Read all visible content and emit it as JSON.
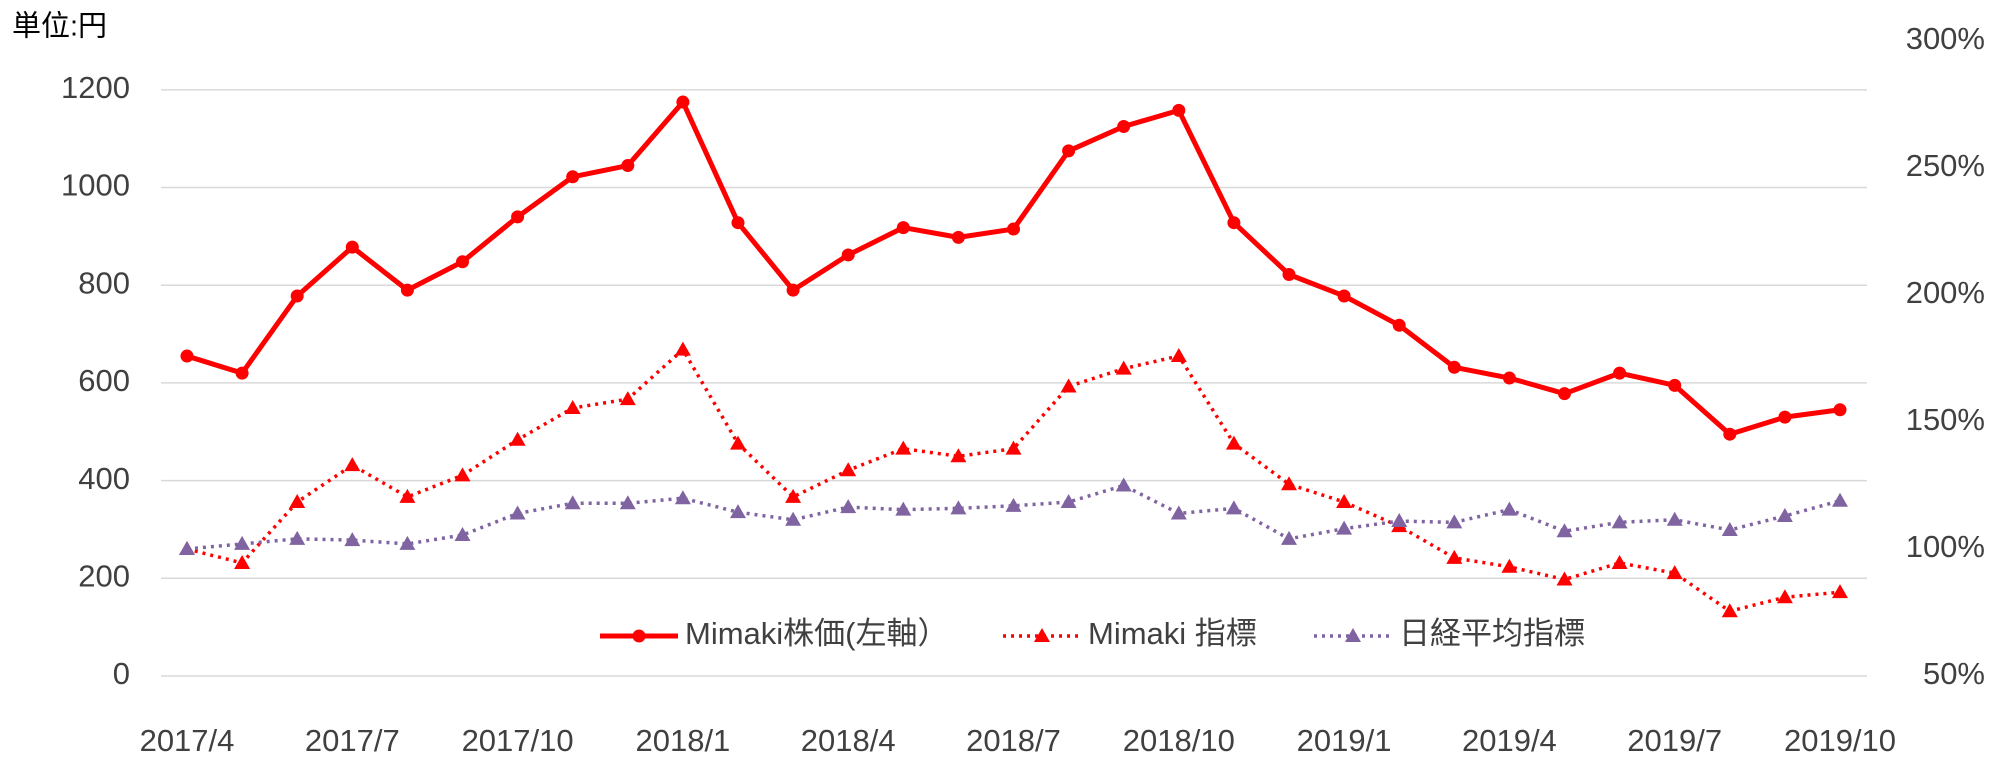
{
  "chart_data": {
    "type": "line",
    "unit_label": "単位:円",
    "categories": [
      "2017/4",
      null,
      null,
      "2017/7",
      null,
      null,
      "2017/10",
      null,
      null,
      "2018/1",
      null,
      null,
      "2018/4",
      null,
      null,
      "2018/7",
      null,
      null,
      "2018/10",
      null,
      null,
      "2019/1",
      null,
      null,
      "2019/4",
      null,
      null,
      "2019/7",
      null,
      null,
      "2019/10"
    ],
    "series": [
      {
        "name": "Mimaki株価(左軸）",
        "color": "#ff0000",
        "line_style": "solid",
        "marker": "circle",
        "axis": "y",
        "values": [
          655,
          620,
          778,
          878,
          790,
          848,
          940,
          1022,
          1045,
          1175,
          928,
          790,
          862,
          918,
          898,
          915,
          1075,
          1125,
          1158,
          928,
          822,
          778,
          718,
          632,
          610,
          578,
          620,
          595,
          495,
          530,
          545
        ]
      },
      {
        "name": "Mimaki 指標",
        "color": "#ff0000",
        "line_style": "dotted",
        "marker": "triangle",
        "axis": "y2",
        "values": [
          100,
          94.5,
          118.5,
          133,
          120.5,
          129,
          143,
          155.5,
          159,
          178.5,
          141.5,
          120.5,
          131,
          139.5,
          136.5,
          139.5,
          164,
          171,
          176,
          141.5,
          125.5,
          118.5,
          109,
          96.5,
          93,
          88,
          94.5,
          90.5,
          75.5,
          81,
          83
        ]
      },
      {
        "name": "日経平均指標",
        "color": "#8064a2",
        "line_style": "dotted",
        "marker": "triangle",
        "axis": "y2",
        "values": [
          100,
          102,
          104,
          103.5,
          102,
          105.5,
          114,
          118,
          118,
          120,
          114.5,
          111.5,
          116.5,
          115.5,
          116,
          117,
          118.5,
          125,
          114,
          116,
          104,
          108,
          111,
          110.5,
          115.5,
          107,
          110.5,
          111.5,
          107.5,
          113,
          119
        ]
      }
    ],
    "ylim": [
      0,
      1300
    ],
    "yticks": [
      0,
      200,
      400,
      600,
      800,
      1000,
      1200
    ],
    "y2lim": [
      50,
      300
    ],
    "y2ticks": [
      {
        "value": 50,
        "label": "50%"
      },
      {
        "value": 100,
        "label": "100%"
      },
      {
        "value": 150,
        "label": "150%"
      },
      {
        "value": 200,
        "label": "200%"
      },
      {
        "value": 250,
        "label": "250%"
      },
      {
        "value": 300,
        "label": "300%"
      }
    ],
    "grid": true,
    "legend": "bottom"
  }
}
